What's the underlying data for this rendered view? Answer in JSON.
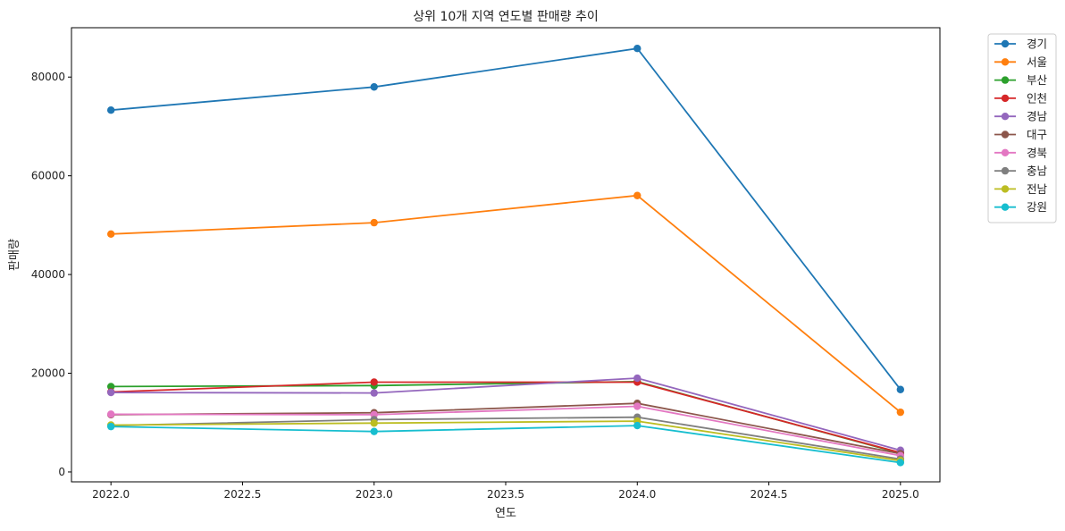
{
  "chart_data": {
    "type": "line",
    "title": "상위 10개 지역 연도별 판매량 추이",
    "xlabel": "연도",
    "ylabel": "판매량",
    "xlim": [
      2021.85,
      2025.15
    ],
    "ylim": [
      -2000,
      90000
    ],
    "x_ticks": [
      2022.0,
      2022.5,
      2023.0,
      2023.5,
      2024.0,
      2024.5,
      2025.0
    ],
    "x_tick_labels": [
      "2022.0",
      "2022.5",
      "2023.0",
      "2023.5",
      "2024.0",
      "2024.5",
      "2025.0"
    ],
    "y_ticks": [
      0,
      20000,
      40000,
      60000,
      80000
    ],
    "y_tick_labels": [
      "0",
      "20000",
      "40000",
      "60000",
      "80000"
    ],
    "grid": false,
    "legend_position": "outside-top-right",
    "x": [
      2022,
      2023,
      2024,
      2025
    ],
    "series": [
      {
        "name": "경기",
        "color": "#1f77b4",
        "values": [
          73300,
          78000,
          85800,
          16700
        ]
      },
      {
        "name": "서울",
        "color": "#ff7f0e",
        "values": [
          48200,
          50500,
          56000,
          12100
        ]
      },
      {
        "name": "부산",
        "color": "#2ca02c",
        "values": [
          17300,
          17500,
          18300,
          3800
        ]
      },
      {
        "name": "인천",
        "color": "#d62728",
        "values": [
          16200,
          18200,
          18200,
          3900
        ]
      },
      {
        "name": "경남",
        "color": "#9467bd",
        "values": [
          16100,
          16000,
          19000,
          4400
        ]
      },
      {
        "name": "대구",
        "color": "#8c564b",
        "values": [
          11600,
          12000,
          13900,
          3700
        ]
      },
      {
        "name": "경북",
        "color": "#e377c2",
        "values": [
          11700,
          11600,
          13300,
          3300
        ]
      },
      {
        "name": "충남",
        "color": "#7f7f7f",
        "values": [
          9400,
          10600,
          11100,
          2600
        ]
      },
      {
        "name": "전남",
        "color": "#bcbd22",
        "values": [
          9500,
          9900,
          10300,
          2300
        ]
      },
      {
        "name": "강원",
        "color": "#17becf",
        "values": [
          9200,
          8200,
          9400,
          1900
        ]
      }
    ]
  }
}
